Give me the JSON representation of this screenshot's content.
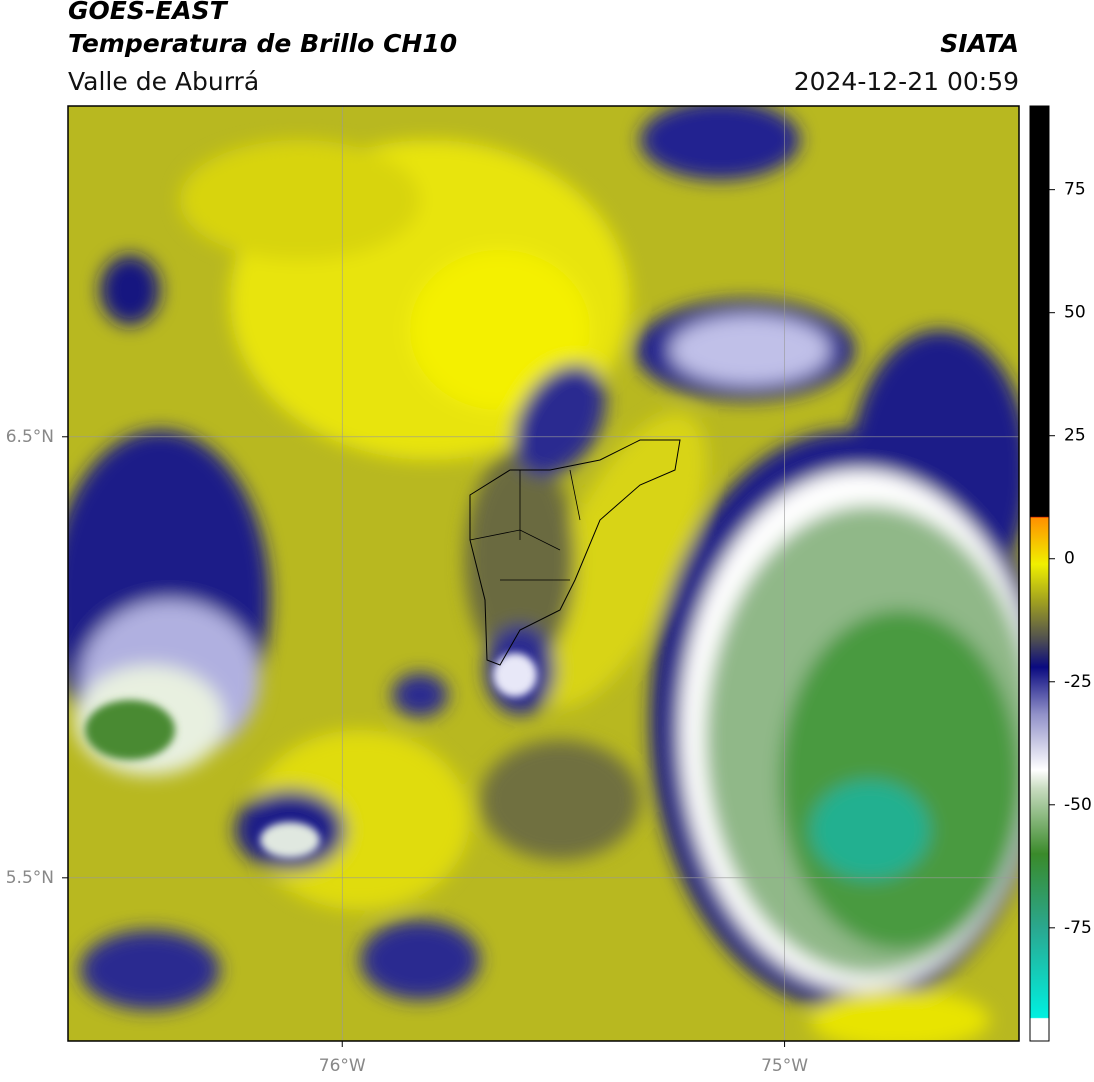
{
  "header": {
    "satellite": "GOES-EAST",
    "product": "Temperatura de Brillo CH10",
    "region": "Valle de Aburrá",
    "source": "SIATA",
    "datetime": "2024-12-21 00:59"
  },
  "map": {
    "xlim": [
      -76.62,
      -74.47
    ],
    "ylim": [
      5.13,
      7.25
    ],
    "xticks": [
      {
        "value": -76,
        "label": "76°W"
      },
      {
        "value": -75,
        "label": "75°W"
      }
    ],
    "yticks": [
      {
        "value": 6.5,
        "label": "6.5°N"
      },
      {
        "value": 5.5,
        "label": "5.5°N"
      }
    ],
    "grid": true
  },
  "colorbar": {
    "lim": [
      -98,
      92
    ],
    "ticks": [
      75,
      50,
      25,
      0,
      -25,
      -50,
      -75
    ]
  }
}
